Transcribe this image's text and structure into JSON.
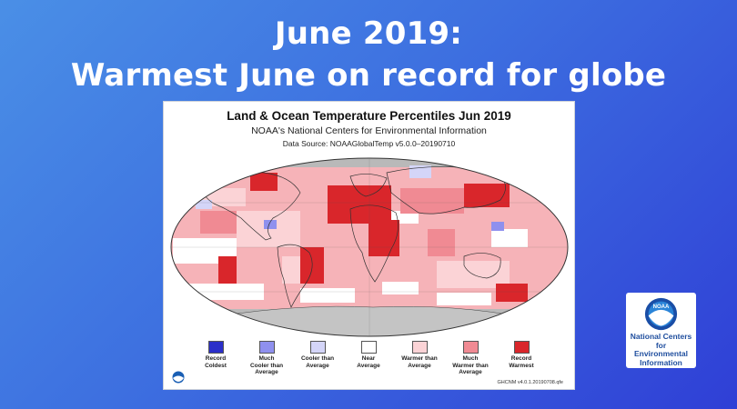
{
  "headline": {
    "line1": "June 2019:",
    "line2": "Warmest June on record for globe"
  },
  "map": {
    "title": "Land & Ocean Temperature Percentiles Jun 2019",
    "subtitle": "NOAA's National Centers for Environmental Information",
    "source": "Data Source: NOAAGlobalTemp v5.0.0–20190710",
    "footer": "GHCNM v4.0.1.20190708.qfe",
    "legend": [
      {
        "line1": "Record",
        "line2": "Coldest",
        "line3": "",
        "color": "#2b2fc9"
      },
      {
        "line1": "Much",
        "line2": "Cooler than",
        "line3": "Average",
        "color": "#8f90ee"
      },
      {
        "line1": "Cooler than",
        "line2": "Average",
        "line3": "",
        "color": "#d4d5f8"
      },
      {
        "line1": "Near",
        "line2": "Average",
        "line3": "",
        "color": "#ffffff"
      },
      {
        "line1": "Warmer than",
        "line2": "Average",
        "line3": "",
        "color": "#fbd3d6"
      },
      {
        "line1": "Much",
        "line2": "Warmer than",
        "line3": "Average",
        "color": "#f08a93"
      },
      {
        "line1": "Record",
        "line2": "Warmest",
        "line3": "",
        "color": "#d9262b"
      }
    ],
    "no_data_color": "#b9b9b9"
  },
  "badge": {
    "logo_text": "NOAA",
    "line1": "National Centers for",
    "line2": "Environmental",
    "line3": "Information"
  }
}
